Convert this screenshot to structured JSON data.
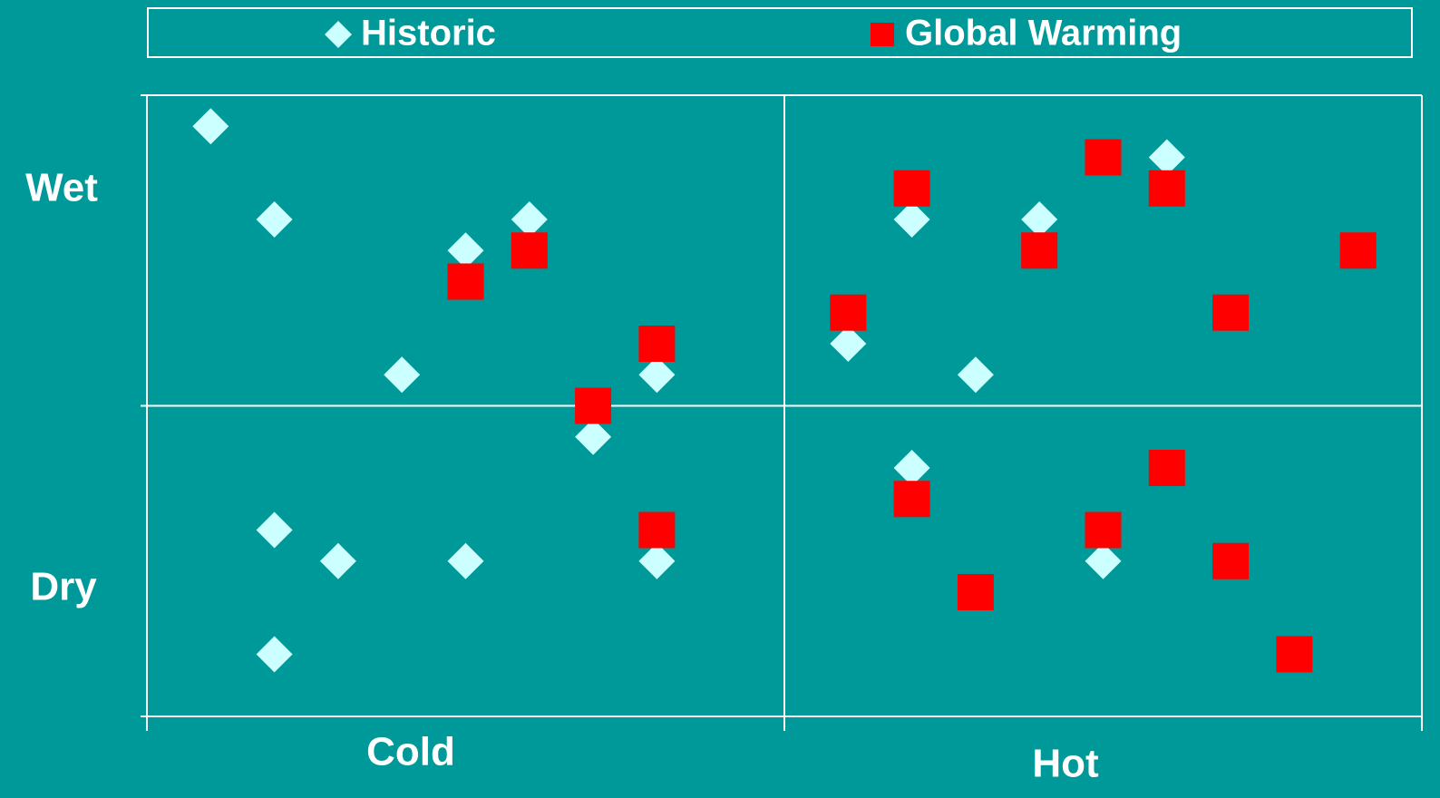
{
  "chart_data": {
    "type": "scatter",
    "x_labels": [
      "Cold",
      "Hot"
    ],
    "y_labels": [
      "Wet",
      "Dry"
    ],
    "xlim": [
      0,
      20
    ],
    "ylim": [
      0,
      20
    ],
    "xticks": [
      0,
      10,
      20
    ],
    "yticks": [
      0,
      10,
      20
    ],
    "grid": true,
    "legend": "top",
    "series": [
      {
        "name": "Historic",
        "color": "#ccffff",
        "marker": "diamond",
        "x": [
          1,
          2,
          5,
          6,
          4,
          8,
          7,
          2,
          3,
          5,
          8,
          2,
          11,
          12,
          13,
          14,
          16,
          12,
          15
        ],
        "values": [
          19,
          16,
          15,
          16,
          11,
          11,
          9,
          6,
          5,
          5,
          5,
          2,
          12,
          16,
          11,
          16,
          18,
          8,
          5
        ]
      },
      {
        "name": "Global Warming",
        "color": "#ff0000",
        "marker": "square",
        "x": [
          5,
          6,
          8,
          7,
          8,
          11,
          12,
          14,
          15,
          16,
          17,
          19,
          12,
          13,
          15,
          16,
          17,
          18
        ],
        "values": [
          14,
          15,
          12,
          10,
          6,
          13,
          17,
          15,
          18,
          17,
          13,
          15,
          7,
          4,
          6,
          8,
          5,
          2
        ]
      }
    ]
  }
}
